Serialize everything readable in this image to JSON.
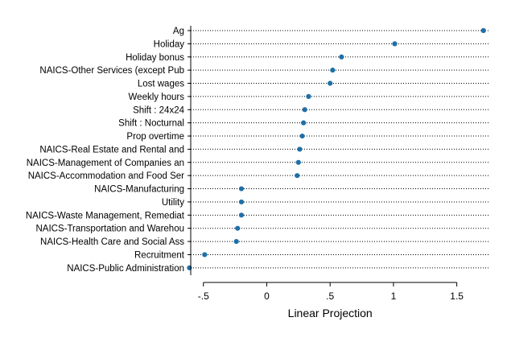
{
  "chart_data": {
    "type": "scatter",
    "subtype": "dot-plot",
    "title": "",
    "xlabel": "Linear Projection",
    "ylabel": "",
    "xlim": [
      -0.6,
      1.75
    ],
    "xticks": [
      -0.5,
      0,
      0.5,
      1,
      1.5
    ],
    "xtick_labels": [
      "-.5",
      "0",
      ".5",
      "1",
      "1.5"
    ],
    "grid": "dotted-horizontal",
    "legend": "none",
    "point_color": "#1f6fa8",
    "categories": [
      "Ag",
      "Holiday",
      "Holiday bonus",
      "NAICS-Other Services (except Pub",
      "Lost wages",
      "Weekly hours",
      "Shift : 24x24",
      "Shift : Nocturnal",
      "Prop overtime",
      "NAICS-Real Estate and Rental and",
      "NAICS-Management of Companies an",
      "NAICS-Accommodation and Food Ser",
      "NAICS-Manufacturing",
      "Utility",
      "NAICS-Waste Management, Remediat",
      "NAICS-Transportation and Warehou",
      "NAICS-Health Care and Social Ass",
      "Recruitment",
      "NAICS-Public Administration"
    ],
    "values": [
      1.71,
      1.01,
      0.59,
      0.52,
      0.5,
      0.33,
      0.3,
      0.29,
      0.28,
      0.26,
      0.25,
      0.24,
      -0.2,
      -0.2,
      -0.2,
      -0.23,
      -0.24,
      -0.49,
      -0.61
    ]
  }
}
